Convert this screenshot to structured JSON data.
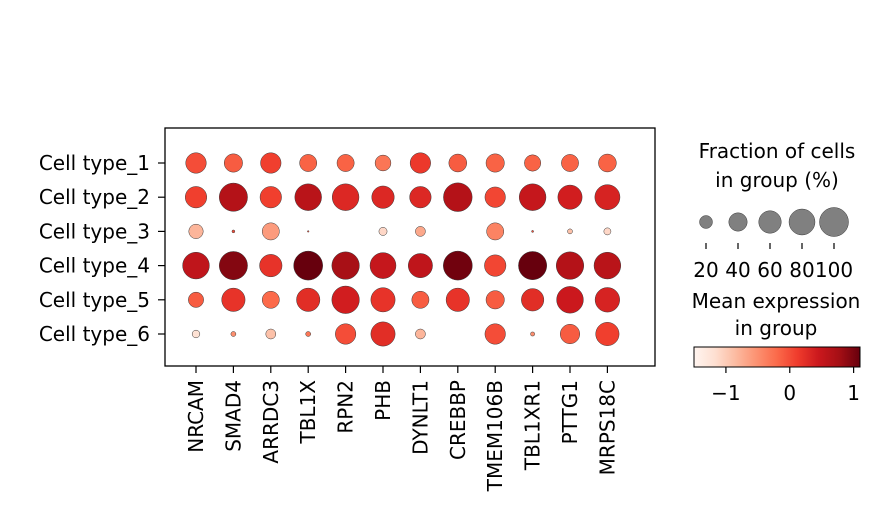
{
  "chart_data": {
    "type": "dotplot",
    "genes": [
      "NRCAM",
      "SMAD4",
      "ARRDC3",
      "TBL1X",
      "RPN2",
      "PHB",
      "DYNLT1",
      "CREBBP",
      "TMEM106B",
      "TBL1XR1",
      "PTTG1",
      "MRPS18C"
    ],
    "groups": [
      "Cell type_1",
      "Cell type_2",
      "Cell type_3",
      "Cell type_4",
      "Cell type_5",
      "Cell type_6"
    ],
    "fraction_percent": [
      [
        50,
        40,
        50,
        35,
        35,
        30,
        50,
        38,
        40,
        32,
        35,
        38
      ],
      [
        55,
        95,
        55,
        85,
        85,
        60,
        55,
        98,
        50,
        85,
        70,
        75
      ],
      [
        25,
        1,
        35,
        0.3,
        0,
        8,
        12,
        0,
        35,
        0.5,
        3,
        6
      ],
      [
        85,
        95,
        60,
        100,
        90,
        80,
        70,
        100,
        55,
        95,
        90,
        85
      ],
      [
        28,
        65,
        35,
        65,
        90,
        70,
        35,
        65,
        40,
        60,
        85,
        72
      ],
      [
        7,
        3,
        12,
        3,
        50,
        70,
        12,
        0,
        50,
        2,
        45,
        65
      ]
    ],
    "mean_expression": [
      [
        0.0,
        -0.1,
        0.1,
        -0.15,
        -0.15,
        -0.3,
        0.15,
        -0.1,
        -0.15,
        -0.15,
        -0.15,
        -0.15
      ],
      [
        0.1,
        0.65,
        0.1,
        0.6,
        0.3,
        0.3,
        0.3,
        0.65,
        0.05,
        0.5,
        0.4,
        0.35
      ],
      [
        -0.8,
        0.0,
        -0.6,
        0.0,
        0.0,
        -1.1,
        -0.7,
        0.0,
        -0.4,
        0.0,
        -0.9,
        -1.1
      ],
      [
        0.55,
        0.95,
        0.2,
        1.1,
        0.75,
        0.5,
        0.55,
        1.05,
        0.05,
        1.1,
        0.65,
        0.6
      ],
      [
        -0.1,
        0.2,
        -0.2,
        0.25,
        0.4,
        0.2,
        -0.1,
        0.2,
        -0.1,
        0.25,
        0.45,
        0.35
      ],
      [
        -1.2,
        -0.5,
        -0.9,
        -0.3,
        0.0,
        0.25,
        -0.8,
        0.0,
        0.0,
        -0.5,
        -0.1,
        0.1
      ]
    ],
    "size_legend": {
      "title_line1": "Fraction of cells",
      "title_line2": "in group (%)",
      "values": [
        20,
        40,
        60,
        80,
        100
      ],
      "labels": [
        "20",
        "40",
        "60",
        "80",
        "100"
      ]
    },
    "color_legend": {
      "title_line1": "Mean expression",
      "title_line2": "in group",
      "range": [
        -1.5,
        1.1
      ],
      "ticks": [
        -1,
        0,
        1
      ],
      "tick_labels": [
        "−1",
        "0",
        "1"
      ],
      "colormap": "Reds",
      "colors": [
        "#fff5f0",
        "#fee0d2",
        "#fcbba1",
        "#fc9272",
        "#fb6a4a",
        "#ef3b2c",
        "#cb181d",
        "#a50f15",
        "#67000d"
      ]
    }
  }
}
